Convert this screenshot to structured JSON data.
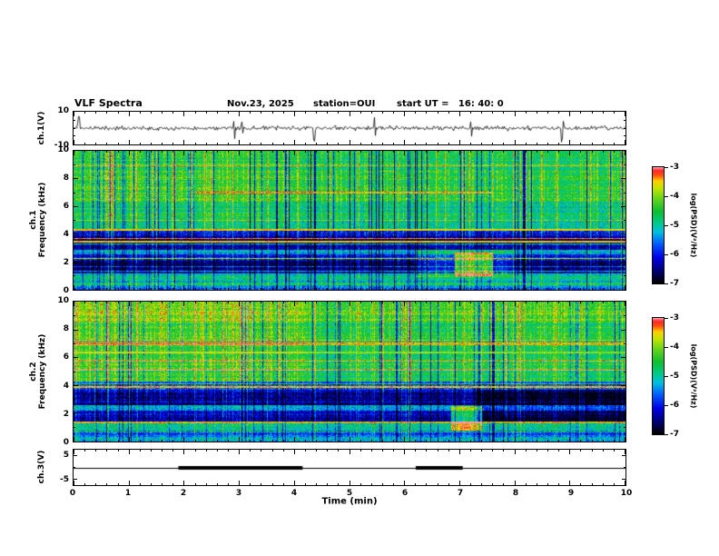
{
  "header": {
    "title": "VLF Spectra",
    "date": "Nov.23, 2025",
    "station": "station=OUI",
    "start_ut": "start UT =   16: 40: 0"
  },
  "xaxis": {
    "label": "Time (min)",
    "range": [
      0,
      10
    ],
    "tick_labels": [
      "0",
      "1",
      "2",
      "3",
      "4",
      "5",
      "6",
      "7",
      "8",
      "9",
      "10"
    ],
    "minor_per_major": 5
  },
  "colormap": {
    "stops": [
      [
        0,
        "#000000"
      ],
      [
        0.1,
        "#000070"
      ],
      [
        0.22,
        "#0000e8"
      ],
      [
        0.34,
        "#0060ff"
      ],
      [
        0.44,
        "#00c0e0"
      ],
      [
        0.52,
        "#00cc88"
      ],
      [
        0.62,
        "#10c030"
      ],
      [
        0.74,
        "#70d818"
      ],
      [
        0.82,
        "#c8e400"
      ],
      [
        0.88,
        "#ffd000"
      ],
      [
        0.93,
        "#ff5010"
      ],
      [
        0.97,
        "#ff2828"
      ],
      [
        1,
        "#ff9aa8"
      ]
    ]
  },
  "chart_data": [
    {
      "type": "line",
      "name": "ch1-waveform",
      "ylabel": "ch.1(V)",
      "ylim": [
        -10,
        10
      ],
      "ytick_labels": [
        "10",
        "-10"
      ],
      "yticks_minor": [
        5,
        0,
        -5
      ],
      "baseline": 0,
      "noise_amplitude": 1.1,
      "spike_times_min": [
        0.08,
        2.9,
        3.05,
        4.35,
        5.45,
        7.2,
        8.85
      ],
      "spike_amplitude": 6.5,
      "seed": 11
    },
    {
      "type": "heatmap",
      "name": "ch1-spectrogram",
      "ylabel_line1": "ch.1",
      "ylabel_line2": "Frequency (kHz)",
      "ylim": [
        0,
        10
      ],
      "ytick_labels": [
        "10",
        "8",
        "6",
        "4",
        "2",
        "0"
      ],
      "yticks_major": [
        2,
        4,
        6,
        8
      ],
      "yticks_minor": [
        1,
        3,
        5,
        7,
        9
      ],
      "value_range": [
        -7,
        -3
      ],
      "colorbar_label": "log(PSD)(V²/Hz)",
      "colorbar_tick_labels": [
        "-3",
        "-4",
        "-5",
        "-6",
        "-7"
      ],
      "seed": 101,
      "noise": 0.45,
      "row_noise": 0.3,
      "row_spike_prob": 0.07,
      "row_spike_amp": 1.2,
      "streak_weight_low": 0.7,
      "bands": [
        {
          "f0": 6.3,
          "f1": 10.01,
          "v": -4.6
        },
        {
          "f0": 4.35,
          "f1": 6.3,
          "v": -4.95
        },
        {
          "f0": 3.95,
          "f1": 4.35,
          "v": -6.15
        },
        {
          "f0": 3.35,
          "f1": 3.95,
          "v": -6.55
        },
        {
          "f0": 2.85,
          "f1": 3.35,
          "v": -6.3
        },
        {
          "f0": 2.55,
          "f1": 2.85,
          "v": -5.3
        },
        {
          "f0": 2.1,
          "f1": 2.55,
          "v": -6.1
        },
        {
          "f0": 1.15,
          "f1": 2.1,
          "v": -6.6
        },
        {
          "f0": 0.55,
          "f1": 1.15,
          "v": -5.15
        },
        {
          "f0": 0.3,
          "f1": 0.55,
          "v": -4.7
        },
        {
          "f0": 0.0,
          "f1": 0.3,
          "v": -5.6
        }
      ],
      "hlines": [
        {
          "f": 7.0,
          "v": -3.45,
          "t0": 2.2,
          "t1": 7.6
        },
        {
          "f": 4.3,
          "v": -3.6
        },
        {
          "f": 3.7,
          "v": -3.3
        },
        {
          "f": 3.45,
          "v": -3.55
        },
        {
          "f": 2.25,
          "v": -3.8
        }
      ],
      "blobs": [
        {
          "t0": 6.9,
          "t1": 7.6,
          "f0": 1.0,
          "f1": 2.7,
          "dv": 1.7
        },
        {
          "t0": 6.2,
          "t1": 8.0,
          "f0": 0.9,
          "f1": 2.9,
          "dv": 0.5
        },
        {
          "t0": 0.0,
          "t1": 4.3,
          "f0": 4.3,
          "f1": 10.01,
          "dv": 0.15
        }
      ],
      "streaks": {
        "prob": 0.5,
        "amp": 0.85,
        "strong_prob": 0.05,
        "strong_amp": 1.3,
        "dark_prob": 0.1,
        "dark_amp": -1.6
      }
    },
    {
      "type": "heatmap",
      "name": "ch2-spectrogram",
      "ylabel_line1": "ch.2",
      "ylabel_line2": "Frequency (kHz)",
      "ylim": [
        0,
        10
      ],
      "ytick_labels": [
        "10",
        "8",
        "6",
        "4",
        "2",
        "0"
      ],
      "yticks_major": [
        2,
        4,
        6,
        8
      ],
      "yticks_minor": [
        1,
        3,
        5,
        7,
        9
      ],
      "value_range": [
        -7,
        -3
      ],
      "colorbar_label": "log(PSD)(V²/Hz)",
      "colorbar_tick_labels": [
        "-3",
        "-4",
        "-5",
        "-6",
        "-7"
      ],
      "seed": 202,
      "noise": 0.45,
      "row_noise": 0.28,
      "row_spike_prob": 0.06,
      "row_spike_amp": 1.1,
      "streak_weight_low": 0.65,
      "bands": [
        {
          "f0": 8.55,
          "f1": 10.01,
          "v": -4.3
        },
        {
          "f0": 4.3,
          "f1": 8.55,
          "v": -4.7
        },
        {
          "f0": 3.7,
          "f1": 4.3,
          "v": -5.8
        },
        {
          "f0": 2.6,
          "f1": 3.7,
          "v": -6.5
        },
        {
          "f0": 2.2,
          "f1": 2.6,
          "v": -5.5
        },
        {
          "f0": 1.45,
          "f1": 2.2,
          "v": -6.3
        },
        {
          "f0": 0.8,
          "f1": 1.45,
          "v": -5.05
        },
        {
          "f0": 0.35,
          "f1": 0.8,
          "v": -5.7
        },
        {
          "f0": 0.0,
          "f1": 0.35,
          "v": -5.25
        }
      ],
      "hlines": [
        {
          "f": 7.0,
          "v": -3.4
        },
        {
          "f": 6.35,
          "v": -3.9
        },
        {
          "f": 3.9,
          "v": -3.45
        }
      ],
      "blobs": [
        {
          "t0": 6.85,
          "t1": 7.4,
          "f0": 0.8,
          "f1": 2.5,
          "dv": 1.5
        },
        {
          "t0": 7.3,
          "t1": 10.01,
          "f0": 1.45,
          "f1": 3.7,
          "dv": -0.45
        },
        {
          "t0": 0.0,
          "t1": 4.25,
          "f0": 4.3,
          "f1": 10.01,
          "dv": 0.25
        }
      ],
      "streaks": {
        "prob": 0.5,
        "amp": 0.9,
        "strong_prob": 0.06,
        "strong_amp": 1.3,
        "dark_prob": 0.08,
        "dark_amp": -1.5
      }
    },
    {
      "type": "line",
      "name": "ch3-trace",
      "ylabel": "ch.3(V)",
      "ylim": [
        -7.5,
        7.5
      ],
      "ytick_labels": [
        "5",
        "-5"
      ],
      "yticks_major": [
        5,
        -5
      ],
      "yticks_minor": [
        0
      ],
      "value": 0,
      "bold_segments_min": [
        [
          1.9,
          4.15
        ],
        [
          6.2,
          7.05
        ]
      ]
    }
  ]
}
